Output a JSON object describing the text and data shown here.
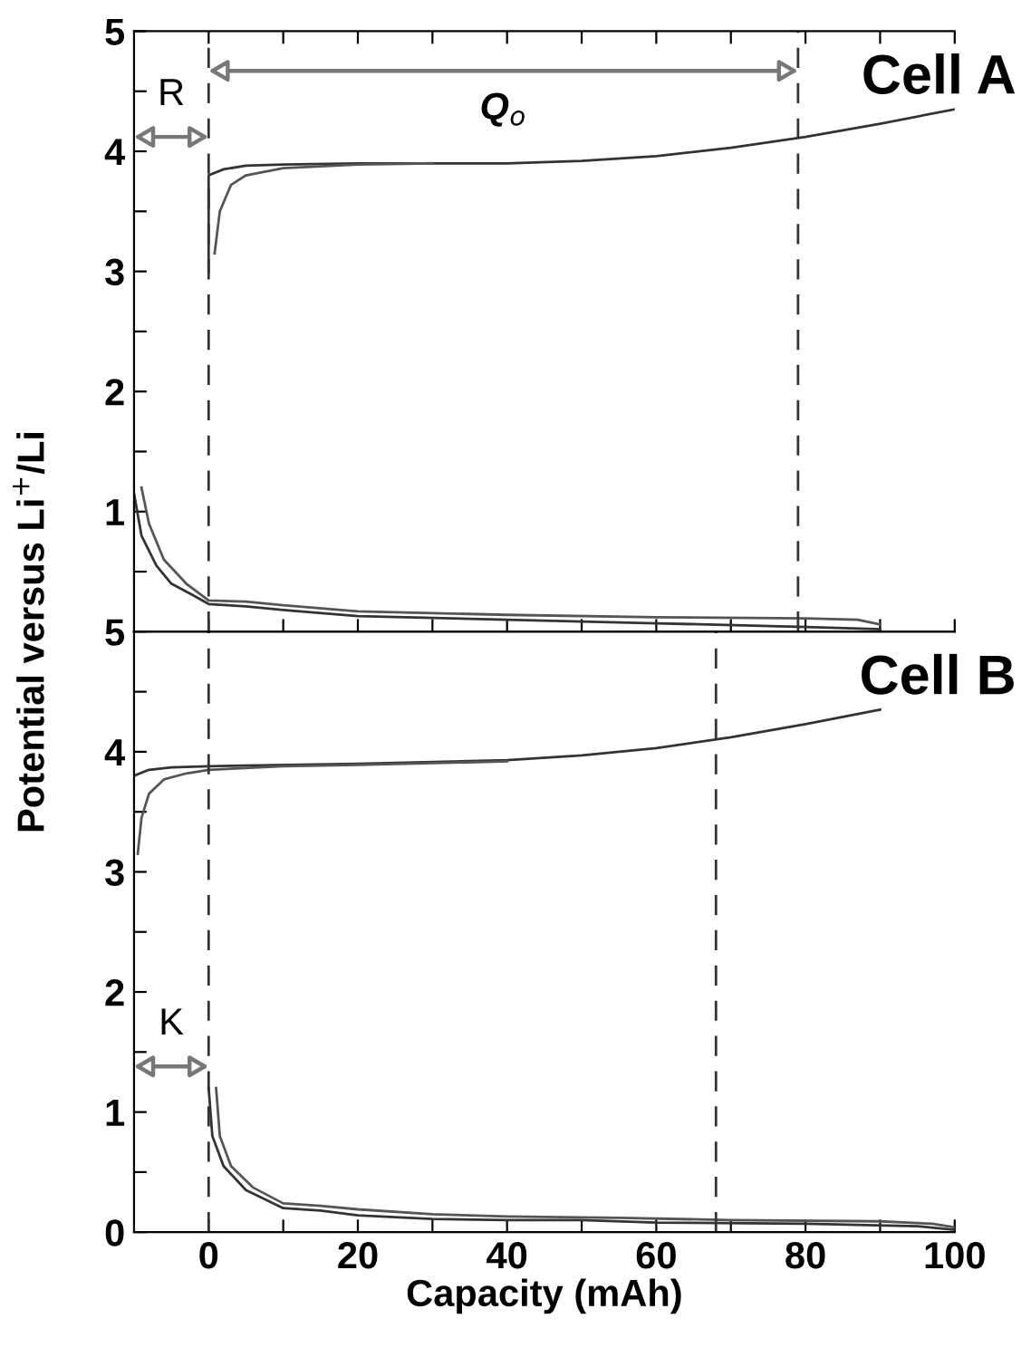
{
  "chart_data": [
    {
      "type": "line",
      "title": "Cell A",
      "ylabel": "Potential versus Li$^{+}$/Li",
      "xlim": [
        -10,
        100
      ],
      "xticks": [
        {
          "value": 0,
          "label": null
        },
        {
          "value": 10,
          "label": null
        },
        {
          "value": 20,
          "label": null
        },
        {
          "value": 30,
          "label": null
        },
        {
          "value": 40,
          "label": null
        },
        {
          "value": 50,
          "label": null
        },
        {
          "value": 60,
          "label": null
        },
        {
          "value": 70,
          "label": null
        },
        {
          "value": 80,
          "label": null
        },
        {
          "value": 90,
          "label": null
        },
        {
          "value": 100,
          "label": null
        }
      ],
      "ylim": [
        0,
        5
      ],
      "yticks": [
        {
          "value": 0,
          "label": null
        },
        {
          "value": 0.5,
          "label": null
        },
        1,
        {
          "value": 1.5,
          "label": null
        },
        2,
        {
          "value": 2.5,
          "label": null
        },
        3,
        {
          "value": 3.5,
          "label": null
        },
        4,
        {
          "value": 4.5,
          "label": null
        },
        5
      ],
      "tick_labels": "y",
      "marker": "none",
      "series": [
        {
          "color": "#333333",
          "x": [
            0,
            0,
            2,
            5,
            10,
            20,
            30,
            40,
            50,
            60,
            70,
            80,
            90,
            100
          ],
          "values": [
            3.0,
            3.8,
            3.85,
            3.88,
            3.89,
            3.9,
            3.9,
            3.9,
            3.92,
            3.96,
            4.03,
            4.12,
            4.23,
            4.35
          ]
        },
        {
          "color": "#555555",
          "x": [
            0.8,
            1.5,
            3,
            5,
            10,
            20,
            30
          ],
          "values": [
            3.15,
            3.5,
            3.72,
            3.8,
            3.86,
            3.89,
            3.9
          ]
        },
        {
          "color": "#333333",
          "x": [
            -10,
            -9,
            -7,
            -5,
            -2,
            0,
            5,
            10,
            20,
            40,
            60,
            80,
            90
          ],
          "values": [
            1.15,
            0.8,
            0.55,
            0.4,
            0.3,
            0.23,
            0.21,
            0.18,
            0.13,
            0.1,
            0.07,
            0.04,
            0.02
          ]
        },
        {
          "color": "#555555",
          "x": [
            -9,
            -8,
            -6,
            -3,
            0,
            5,
            10,
            20,
            40,
            60,
            80,
            87,
            90
          ],
          "values": [
            1.2,
            0.9,
            0.6,
            0.4,
            0.26,
            0.25,
            0.22,
            0.17,
            0.14,
            0.12,
            0.11,
            0.1,
            0.06
          ]
        }
      ],
      "ref_lines": [
        {
          "axis": "x",
          "value": 0,
          "line_style": "dashed",
          "color": "#333333"
        },
        {
          "axis": "x",
          "value": 79,
          "line_style": "dashed",
          "color": "#333333"
        }
      ],
      "annotations": [
        "R",
        "Q$_{o}$"
      ]
    },
    {
      "type": "line",
      "title": "Cell B",
      "xlabel": "Capacity (mAh)",
      "xlim": [
        -10,
        100
      ],
      "xticks": [
        0,
        {
          "value": 10,
          "label": null
        },
        20,
        {
          "value": 30,
          "label": null
        },
        40,
        {
          "value": 50,
          "label": null
        },
        60,
        {
          "value": 70,
          "label": null
        },
        80,
        {
          "value": 90,
          "label": null
        },
        100
      ],
      "ylim": [
        0,
        5
      ],
      "yticks": [
        0,
        {
          "value": 0.5,
          "label": null
        },
        1,
        {
          "value": 1.5,
          "label": null
        },
        2,
        {
          "value": 2.5,
          "label": null
        },
        3,
        {
          "value": 3.5,
          "label": null
        },
        4,
        {
          "value": 4.5,
          "label": null
        },
        5
      ],
      "marker": "none",
      "series": [
        {
          "color": "#333333",
          "x": [
            -10,
            -8,
            -5,
            0,
            20,
            40,
            50,
            60,
            70,
            80,
            90
          ],
          "values": [
            3.8,
            3.85,
            3.87,
            3.88,
            3.9,
            3.93,
            3.97,
            4.03,
            4.12,
            4.23,
            4.35
          ]
        },
        {
          "color": "#555555",
          "x": [
            -9.5,
            -9,
            -8,
            -6,
            -3,
            0,
            10,
            20,
            40
          ],
          "values": [
            3.15,
            3.45,
            3.65,
            3.77,
            3.82,
            3.85,
            3.88,
            3.89,
            3.92
          ]
        },
        {
          "color": "#333333",
          "x": [
            0,
            0.5,
            2,
            5,
            10,
            15,
            20,
            30,
            40,
            50,
            60,
            80,
            95,
            100
          ],
          "values": [
            1.2,
            0.8,
            0.55,
            0.35,
            0.2,
            0.18,
            0.14,
            0.11,
            0.1,
            0.1,
            0.08,
            0.07,
            0.05,
            0.02
          ]
        },
        {
          "color": "#555555",
          "x": [
            1,
            1.5,
            3,
            6,
            10,
            15,
            20,
            30,
            40,
            55,
            70,
            90,
            97,
            100
          ],
          "values": [
            1.2,
            0.8,
            0.55,
            0.37,
            0.24,
            0.22,
            0.19,
            0.15,
            0.13,
            0.12,
            0.1,
            0.09,
            0.07,
            0.04
          ]
        }
      ],
      "ref_lines": [
        {
          "axis": "x",
          "value": 0,
          "line_style": "dashed",
          "color": "#333333"
        },
        {
          "axis": "x",
          "value": 68,
          "line_style": "dashed",
          "color": "#333333"
        }
      ],
      "annotations": [
        "K"
      ]
    }
  ]
}
